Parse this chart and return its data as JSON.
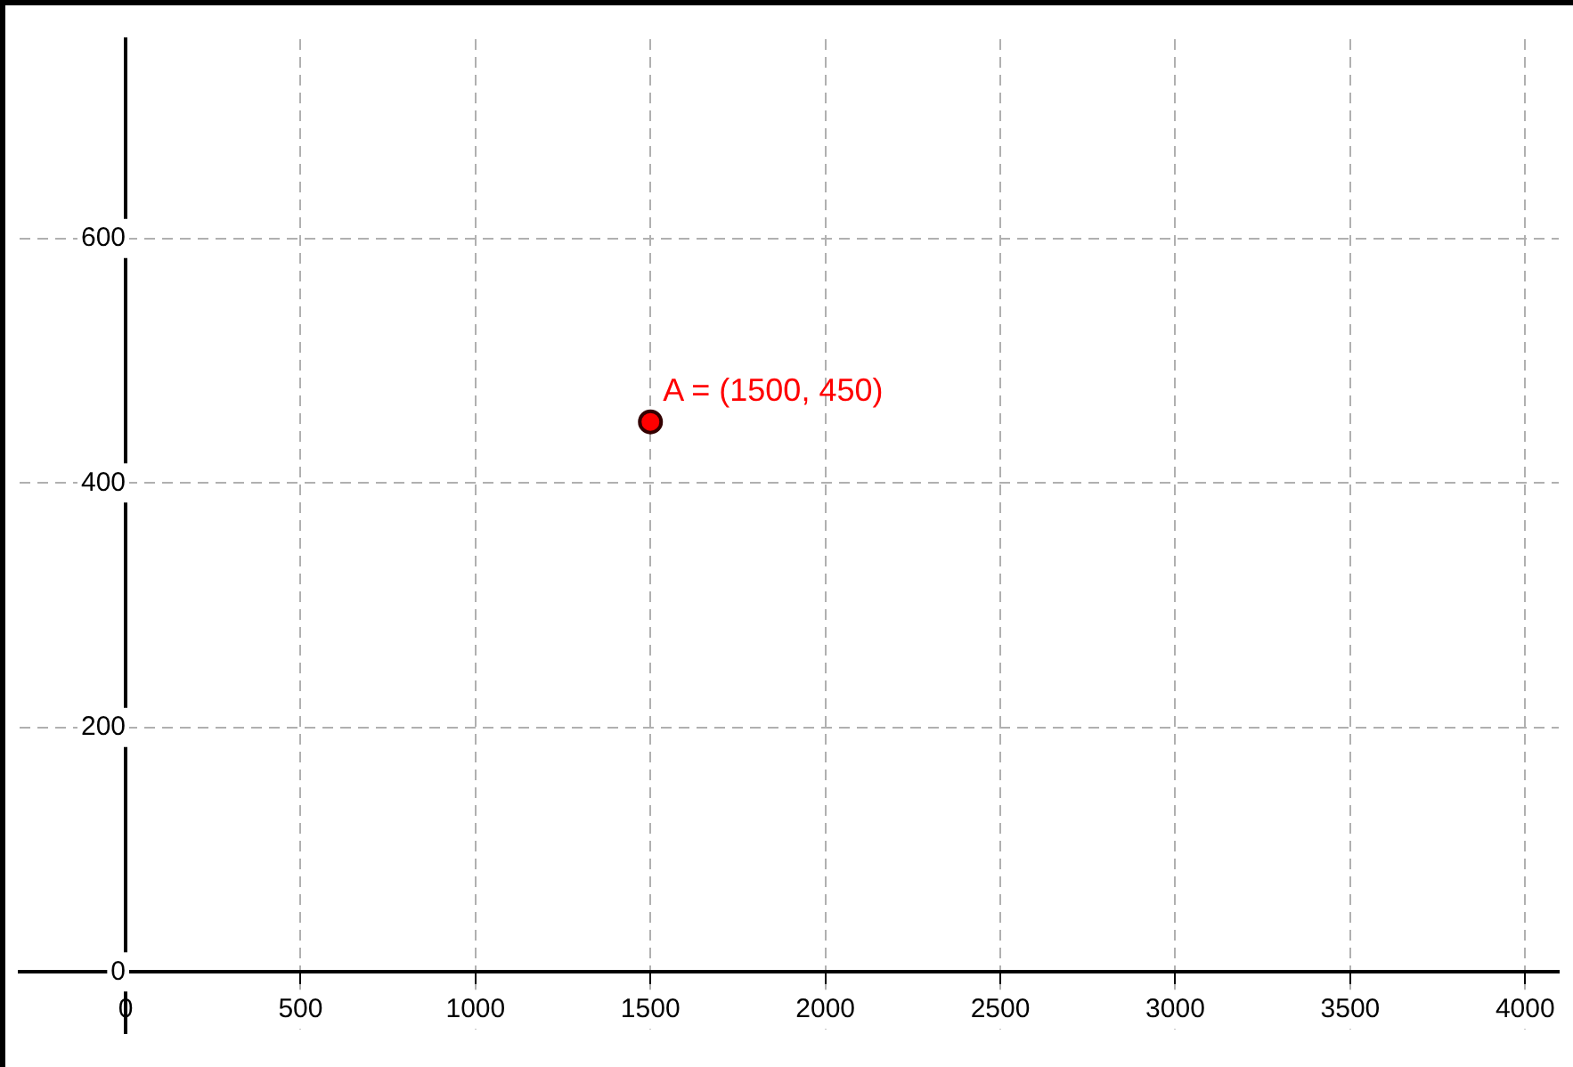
{
  "chart_data": {
    "type": "scatter",
    "x": [
      1500
    ],
    "values": [
      450
    ],
    "color": "#ff0000",
    "marker": "circle",
    "annotations": [
      {
        "text": "A = (1500, 450)",
        "x": 1500,
        "y": 450
      }
    ],
    "xlim": [
      -303,
      4096
    ],
    "ylim": [
      -50,
      763
    ],
    "xticks": [
      0,
      500,
      1000,
      1500,
      2000,
      2500,
      3000,
      3500,
      4000
    ],
    "yticks": [
      0,
      200,
      400,
      600
    ],
    "grid": true,
    "legend": false
  }
}
